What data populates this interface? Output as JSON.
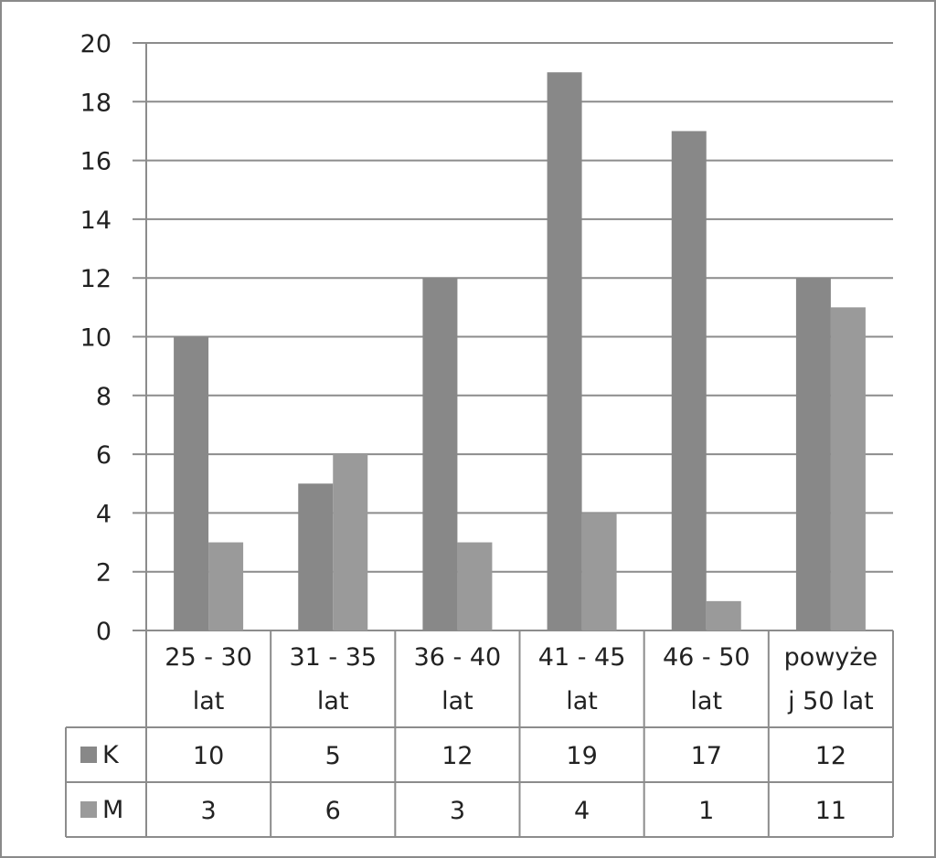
{
  "chart_data": {
    "type": "bar",
    "categories": [
      [
        "25 - 30",
        "lat"
      ],
      [
        "31 - 35",
        "lat"
      ],
      [
        "36 - 40",
        "lat"
      ],
      [
        "41 - 45",
        "lat"
      ],
      [
        "46 - 50",
        "lat"
      ],
      [
        "powyże",
        "j 50 lat"
      ]
    ],
    "series": [
      {
        "name": "K",
        "values": [
          10,
          5,
          12,
          19,
          17,
          12
        ],
        "color": "#888888"
      },
      {
        "name": "M",
        "values": [
          3,
          6,
          3,
          4,
          1,
          11
        ],
        "color": "#9a9a9a"
      }
    ],
    "ylim": [
      0,
      20
    ],
    "yticks": [
      "0",
      "2",
      "4",
      "6",
      "8",
      "10",
      "12",
      "14",
      "16",
      "18",
      "20"
    ],
    "grid": true,
    "legend_placement": "data-table",
    "title": "",
    "xlabel": "",
    "ylabel": ""
  }
}
